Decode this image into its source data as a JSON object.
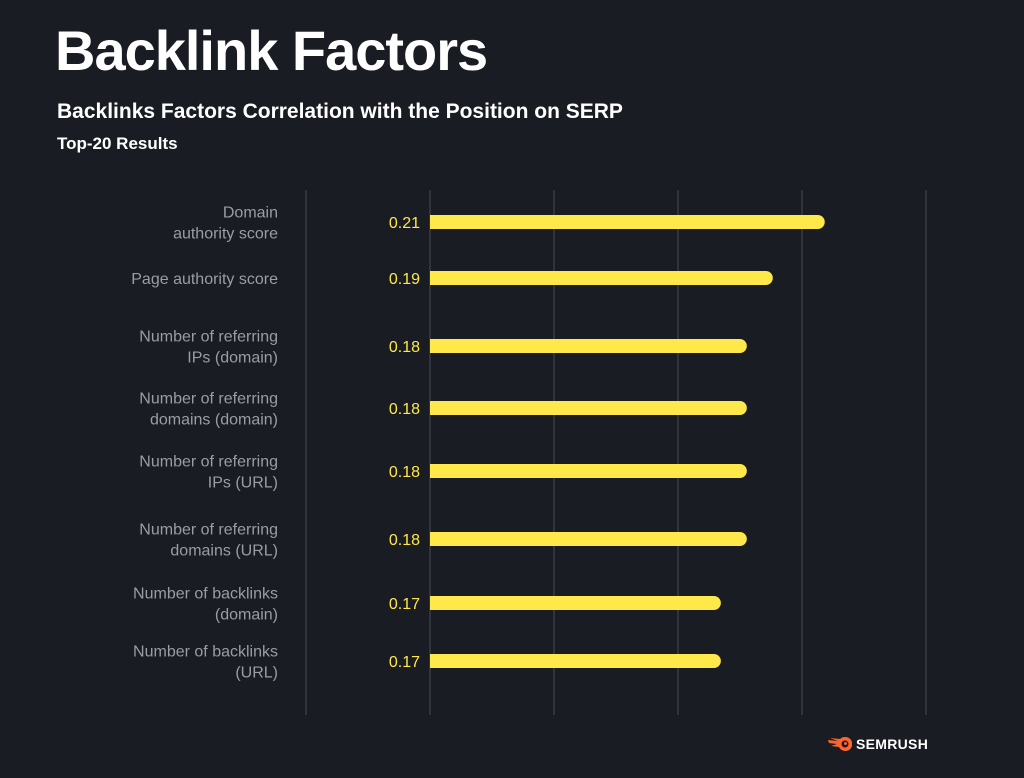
{
  "header": {
    "title": "Backlink Factors",
    "subtitle": "Backlinks Factors Correlation with the Position on SERP",
    "subsubtitle": "Top-20 Results"
  },
  "chart_data": {
    "type": "bar",
    "orientation": "horizontal",
    "title": "Backlinks Factors Correlation with the Position on SERP",
    "categories": [
      [
        "Domain",
        "authority score"
      ],
      [
        "Page authority score"
      ],
      [
        "Number of referring",
        "IPs (domain)"
      ],
      [
        "Number of referring",
        "domains (domain)"
      ],
      [
        "Number of referring",
        "IPs (URL)"
      ],
      [
        "Number of referring",
        "domains (URL)"
      ],
      [
        "Number of backlinks",
        "(domain)"
      ],
      [
        "Number of backlinks",
        "(URL)"
      ]
    ],
    "values": [
      0.21,
      0.19,
      0.18,
      0.18,
      0.18,
      0.18,
      0.17,
      0.17
    ],
    "data_labels": [
      "0.21",
      "0.19",
      "0.18",
      "0.18",
      "0.18",
      "0.18",
      "0.17",
      "0.17"
    ],
    "xlim": [
      0.058,
      0.249
    ],
    "grid": true,
    "colors": {
      "bar": "#ffe84a",
      "label": "#ffe84a",
      "category": "#9a9ca6",
      "grid": "#3a3c44",
      "background": "#1a1c23"
    }
  },
  "brand": {
    "name": "SEMRUSH",
    "color": "#ff642d"
  }
}
